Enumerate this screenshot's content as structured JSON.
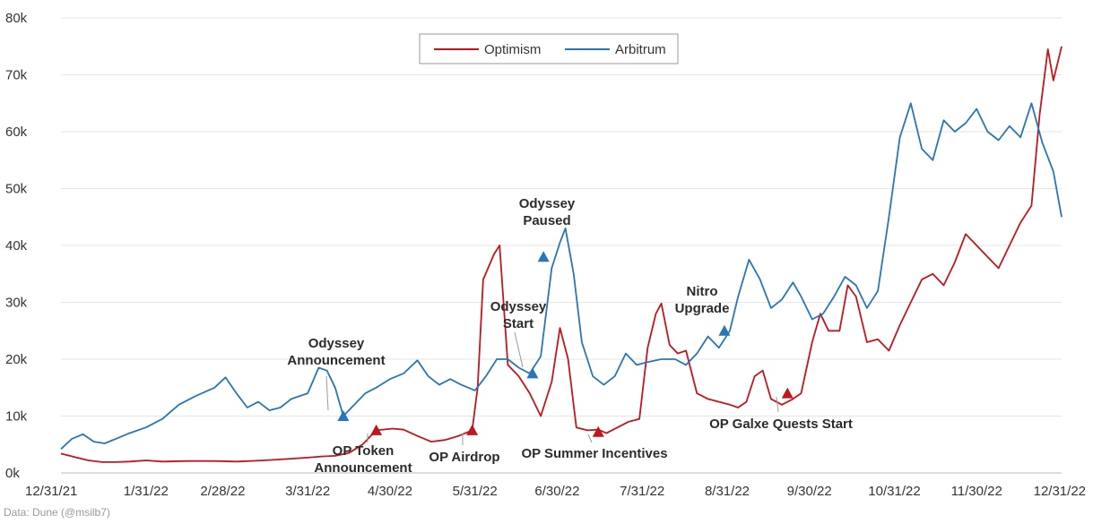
{
  "footer": {
    "source": "Data: Dune (@msilb7)"
  },
  "chart_data": {
    "type": "line",
    "x_type": "date",
    "xlim": [
      "2021-12-31",
      "2022-12-31"
    ],
    "ylim": [
      0,
      80000
    ],
    "y_ticks": [
      0,
      10000,
      20000,
      30000,
      40000,
      50000,
      60000,
      70000,
      80000
    ],
    "y_tick_labels": [
      "0k",
      "10k",
      "20k",
      "30k",
      "40k",
      "50k",
      "60k",
      "70k",
      "80k"
    ],
    "x_ticks": [
      "2021-12-31",
      "2022-01-31",
      "2022-02-28",
      "2022-03-31",
      "2022-04-30",
      "2022-05-31",
      "2022-06-30",
      "2022-07-31",
      "2022-08-31",
      "2022-09-30",
      "2022-10-31",
      "2022-11-30",
      "2022-12-31"
    ],
    "x_tick_labels": [
      "12/31/21",
      "1/31/22",
      "2/28/22",
      "3/31/22",
      "4/30/22",
      "5/31/22",
      "6/30/22",
      "7/31/22",
      "8/31/22",
      "9/30/22",
      "10/31/22",
      "11/30/22",
      "12/31/22"
    ],
    "grid": true,
    "legend_position": "top-center",
    "colors": {
      "Optimism": "#c0161e",
      "Arbitrum": "#2776b9"
    },
    "series": [
      {
        "name": "Optimism",
        "points": [
          [
            "2021-12-31",
            3400
          ],
          [
            "2022-01-05",
            2800
          ],
          [
            "2022-01-10",
            2200
          ],
          [
            "2022-01-15",
            1900
          ],
          [
            "2022-01-20",
            1900
          ],
          [
            "2022-01-25",
            2000
          ],
          [
            "2022-01-31",
            2200
          ],
          [
            "2022-02-06",
            2000
          ],
          [
            "2022-02-15",
            2100
          ],
          [
            "2022-02-25",
            2100
          ],
          [
            "2022-03-05",
            2000
          ],
          [
            "2022-03-15",
            2200
          ],
          [
            "2022-03-25",
            2500
          ],
          [
            "2022-03-31",
            2700
          ],
          [
            "2022-04-05",
            2900
          ],
          [
            "2022-04-10",
            3000
          ],
          [
            "2022-04-15",
            3500
          ],
          [
            "2022-04-20",
            5000
          ],
          [
            "2022-04-25",
            7500
          ],
          [
            "2022-05-01",
            7800
          ],
          [
            "2022-05-05",
            7600
          ],
          [
            "2022-05-10",
            6500
          ],
          [
            "2022-05-15",
            5500
          ],
          [
            "2022-05-20",
            5800
          ],
          [
            "2022-05-25",
            6500
          ],
          [
            "2022-05-30",
            7500
          ],
          [
            "2022-06-01",
            15000
          ],
          [
            "2022-06-03",
            34000
          ],
          [
            "2022-06-07",
            38500
          ],
          [
            "2022-06-09",
            40000
          ],
          [
            "2022-06-12",
            19000
          ],
          [
            "2022-06-16",
            17000
          ],
          [
            "2022-06-20",
            14000
          ],
          [
            "2022-06-24",
            10000
          ],
          [
            "2022-06-28",
            16000
          ],
          [
            "2022-07-01",
            25500
          ],
          [
            "2022-07-04",
            20000
          ],
          [
            "2022-07-07",
            8000
          ],
          [
            "2022-07-11",
            7500
          ],
          [
            "2022-07-15",
            7600
          ],
          [
            "2022-07-18",
            7000
          ],
          [
            "2022-07-22",
            8000
          ],
          [
            "2022-07-26",
            9000
          ],
          [
            "2022-07-30",
            9500
          ],
          [
            "2022-08-02",
            22000
          ],
          [
            "2022-08-05",
            28000
          ],
          [
            "2022-08-07",
            29800
          ],
          [
            "2022-08-10",
            22500
          ],
          [
            "2022-08-13",
            21000
          ],
          [
            "2022-08-16",
            21500
          ],
          [
            "2022-08-20",
            14000
          ],
          [
            "2022-08-24",
            13000
          ],
          [
            "2022-08-28",
            12500
          ],
          [
            "2022-09-01",
            12000
          ],
          [
            "2022-09-04",
            11500
          ],
          [
            "2022-09-07",
            12500
          ],
          [
            "2022-09-10",
            17000
          ],
          [
            "2022-09-13",
            18000
          ],
          [
            "2022-09-16",
            13000
          ],
          [
            "2022-09-20",
            12000
          ],
          [
            "2022-09-24",
            13000
          ],
          [
            "2022-09-27",
            14000
          ],
          [
            "2022-10-01",
            23000
          ],
          [
            "2022-10-04",
            28000
          ],
          [
            "2022-10-07",
            25000
          ],
          [
            "2022-10-11",
            25000
          ],
          [
            "2022-10-14",
            33000
          ],
          [
            "2022-10-17",
            31000
          ],
          [
            "2022-10-21",
            23000
          ],
          [
            "2022-10-25",
            23500
          ],
          [
            "2022-10-29",
            21500
          ],
          [
            "2022-11-02",
            26000
          ],
          [
            "2022-11-06",
            30000
          ],
          [
            "2022-11-10",
            34000
          ],
          [
            "2022-11-14",
            35000
          ],
          [
            "2022-11-18",
            33000
          ],
          [
            "2022-11-22",
            37000
          ],
          [
            "2022-11-26",
            42000
          ],
          [
            "2022-11-30",
            40000
          ],
          [
            "2022-12-04",
            38000
          ],
          [
            "2022-12-08",
            36000
          ],
          [
            "2022-12-12",
            40000
          ],
          [
            "2022-12-16",
            44000
          ],
          [
            "2022-12-20",
            47000
          ],
          [
            "2022-12-23",
            63000
          ],
          [
            "2022-12-26",
            74500
          ],
          [
            "2022-12-28",
            69000
          ],
          [
            "2022-12-31",
            75000
          ]
        ]
      },
      {
        "name": "Arbitrum",
        "points": [
          [
            "2021-12-31",
            4200
          ],
          [
            "2022-01-04",
            6000
          ],
          [
            "2022-01-08",
            6800
          ],
          [
            "2022-01-12",
            5500
          ],
          [
            "2022-01-16",
            5200
          ],
          [
            "2022-01-20",
            6000
          ],
          [
            "2022-01-25",
            7000
          ],
          [
            "2022-01-31",
            8000
          ],
          [
            "2022-02-06",
            9500
          ],
          [
            "2022-02-12",
            12000
          ],
          [
            "2022-02-18",
            13500
          ],
          [
            "2022-02-25",
            15000
          ],
          [
            "2022-03-01",
            16800
          ],
          [
            "2022-03-05",
            14000
          ],
          [
            "2022-03-09",
            11500
          ],
          [
            "2022-03-13",
            12500
          ],
          [
            "2022-03-17",
            11000
          ],
          [
            "2022-03-21",
            11500
          ],
          [
            "2022-03-25",
            13000
          ],
          [
            "2022-03-31",
            14000
          ],
          [
            "2022-04-04",
            18500
          ],
          [
            "2022-04-07",
            18000
          ],
          [
            "2022-04-10",
            15000
          ],
          [
            "2022-04-13",
            10000
          ],
          [
            "2022-04-17",
            12000
          ],
          [
            "2022-04-21",
            14000
          ],
          [
            "2022-04-25",
            15000
          ],
          [
            "2022-04-30",
            16500
          ],
          [
            "2022-05-05",
            17500
          ],
          [
            "2022-05-10",
            19800
          ],
          [
            "2022-05-14",
            17000
          ],
          [
            "2022-05-18",
            15500
          ],
          [
            "2022-05-22",
            16500
          ],
          [
            "2022-05-26",
            15500
          ],
          [
            "2022-05-31",
            14500
          ],
          [
            "2022-06-04",
            17000
          ],
          [
            "2022-06-08",
            20000
          ],
          [
            "2022-06-12",
            20000
          ],
          [
            "2022-06-16",
            18500
          ],
          [
            "2022-06-20",
            17500
          ],
          [
            "2022-06-24",
            20500
          ],
          [
            "2022-06-28",
            36000
          ],
          [
            "2022-07-01",
            40500
          ],
          [
            "2022-07-03",
            43000
          ],
          [
            "2022-07-06",
            35000
          ],
          [
            "2022-07-09",
            23000
          ],
          [
            "2022-07-13",
            17000
          ],
          [
            "2022-07-17",
            15500
          ],
          [
            "2022-07-21",
            17000
          ],
          [
            "2022-07-25",
            21000
          ],
          [
            "2022-07-29",
            19000
          ],
          [
            "2022-08-02",
            19500
          ],
          [
            "2022-08-07",
            20000
          ],
          [
            "2022-08-12",
            20000
          ],
          [
            "2022-08-16",
            19000
          ],
          [
            "2022-08-20",
            21000
          ],
          [
            "2022-08-24",
            24000
          ],
          [
            "2022-08-28",
            22000
          ],
          [
            "2022-09-01",
            25000
          ],
          [
            "2022-09-04",
            31000
          ],
          [
            "2022-09-08",
            37500
          ],
          [
            "2022-09-12",
            34000
          ],
          [
            "2022-09-16",
            29000
          ],
          [
            "2022-09-20",
            30500
          ],
          [
            "2022-09-24",
            33500
          ],
          [
            "2022-09-27",
            31000
          ],
          [
            "2022-10-01",
            27000
          ],
          [
            "2022-10-05",
            28000
          ],
          [
            "2022-10-09",
            31000
          ],
          [
            "2022-10-13",
            34500
          ],
          [
            "2022-10-17",
            33000
          ],
          [
            "2022-10-21",
            29000
          ],
          [
            "2022-10-25",
            32000
          ],
          [
            "2022-10-29",
            45000
          ],
          [
            "2022-11-02",
            59000
          ],
          [
            "2022-11-06",
            65000
          ],
          [
            "2022-11-10",
            57000
          ],
          [
            "2022-11-14",
            55000
          ],
          [
            "2022-11-18",
            62000
          ],
          [
            "2022-11-22",
            60000
          ],
          [
            "2022-11-26",
            61500
          ],
          [
            "2022-11-30",
            64000
          ],
          [
            "2022-12-04",
            60000
          ],
          [
            "2022-12-08",
            58500
          ],
          [
            "2022-12-12",
            61000
          ],
          [
            "2022-12-16",
            59000
          ],
          [
            "2022-12-20",
            65000
          ],
          [
            "2022-12-24",
            58000
          ],
          [
            "2022-12-28",
            53000
          ],
          [
            "2022-12-31",
            45000
          ]
        ]
      }
    ],
    "markers": [
      {
        "series": "Arbitrum",
        "date": "2022-04-13",
        "value": 10000,
        "label": [
          "Odyssey",
          "Announcement"
        ]
      },
      {
        "series": "Arbitrum",
        "date": "2022-06-21",
        "value": 17500,
        "label": [
          "Odyssey",
          "Start"
        ]
      },
      {
        "series": "Arbitrum",
        "date": "2022-06-25",
        "value": 38000,
        "label": [
          "Odyssey",
          "Paused"
        ]
      },
      {
        "series": "Arbitrum",
        "date": "2022-08-30",
        "value": 25000,
        "label": [
          "Nitro",
          "Upgrade"
        ]
      },
      {
        "series": "Optimism",
        "date": "2022-04-25",
        "value": 7500,
        "label": [
          "OP Token",
          "Announcement"
        ]
      },
      {
        "series": "Optimism",
        "date": "2022-05-30",
        "value": 7500,
        "label": [
          "OP Airdrop"
        ]
      },
      {
        "series": "Optimism",
        "date": "2022-07-15",
        "value": 7200,
        "label": [
          "OP Summer Incentives"
        ]
      },
      {
        "series": "Optimism",
        "date": "2022-09-22",
        "value": 14000,
        "label": [
          "OP Galxe Quests Start"
        ]
      }
    ]
  }
}
